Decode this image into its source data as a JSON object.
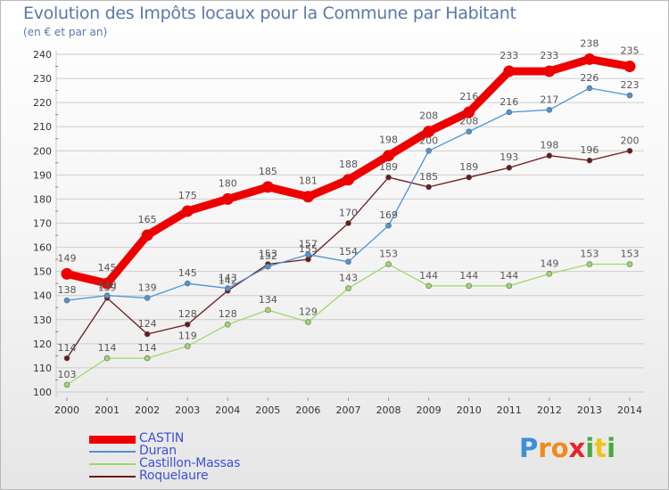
{
  "header": {
    "title": "Evolution des Impôts locaux pour la Commune par Habitant",
    "subtitle": "(en € et par an)"
  },
  "brand": {
    "letters": [
      "P",
      "r",
      "o",
      "x",
      "i",
      "t",
      "i"
    ],
    "colors": [
      "#3d8fd9",
      "#f08a1c",
      "#f08a1c",
      "#e8232a",
      "#4aa83d",
      "#f2c21b",
      "#4aa83d"
    ]
  },
  "colors": {
    "axis_text": "#333333",
    "value_text": "#555555",
    "grid": "#cccccc",
    "tick_red": "#e02020"
  },
  "chart_data": {
    "type": "line",
    "title": "Evolution des Impôts locaux pour la Commune par Habitant",
    "subtitle": "(en € et par an)",
    "xlabel": "",
    "ylabel": "",
    "x": [
      2000,
      2001,
      2002,
      2003,
      2004,
      2005,
      2006,
      2007,
      2008,
      2009,
      2010,
      2011,
      2012,
      2013,
      2014
    ],
    "ylim": [
      100,
      240
    ],
    "yticks": [
      100,
      110,
      120,
      130,
      140,
      150,
      160,
      170,
      180,
      190,
      200,
      210,
      220,
      230,
      240
    ],
    "grid": true,
    "legend": "bottom-left",
    "series": [
      {
        "name": "CASTIN",
        "color": "#ee0000",
        "values": [
          149,
          145,
          165,
          175,
          180,
          185,
          181,
          188,
          198,
          208,
          216,
          233,
          233,
          238,
          235
        ]
      },
      {
        "name": "Duran",
        "color": "#4c94d6",
        "values": [
          138,
          140,
          139,
          145,
          143,
          152,
          157,
          154,
          169,
          200,
          208,
          216,
          217,
          226,
          223
        ]
      },
      {
        "name": "Castillon-Massas",
        "color": "#9ed86b",
        "values": [
          103,
          114,
          114,
          119,
          128,
          134,
          129,
          143,
          153,
          144,
          144,
          144,
          149,
          153,
          153
        ]
      },
      {
        "name": "Roquelaure",
        "color": "#6b1a1a",
        "values": [
          114,
          139,
          124,
          128,
          142,
          153,
          155,
          170,
          189,
          185,
          189,
          193,
          198,
          196,
          200
        ]
      }
    ]
  }
}
